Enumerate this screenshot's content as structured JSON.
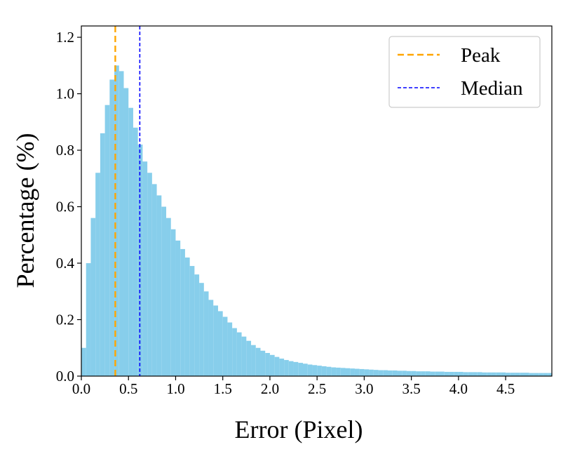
{
  "chart_data": {
    "type": "bar",
    "subtype": "histogram",
    "title": "",
    "xlabel": "Error (Pixel)",
    "ylabel": "Percentage (%)",
    "xlim": [
      0.0,
      4.99
    ],
    "ylim": [
      0.0,
      1.24
    ],
    "x_ticks": [
      0.0,
      0.5,
      1.0,
      1.5,
      2.0,
      2.5,
      3.0,
      3.5,
      4.0,
      4.5
    ],
    "x_tick_labels": [
      "0.0",
      "0.5",
      "1.0",
      "1.5",
      "2.0",
      "2.5",
      "3.0",
      "3.5",
      "4.0",
      "4.5"
    ],
    "y_ticks": [
      0.0,
      0.2,
      0.4,
      0.6,
      0.8,
      1.0,
      1.2
    ],
    "y_tick_labels": [
      "0.0",
      "0.2",
      "0.4",
      "0.6",
      "0.8",
      "1.0",
      "1.2"
    ],
    "bin_width": 0.05,
    "bins": [
      0.0,
      0.05,
      0.1,
      0.15,
      0.2,
      0.25,
      0.3,
      0.35,
      0.4,
      0.45,
      0.5,
      0.55,
      0.6,
      0.65,
      0.7,
      0.75,
      0.8,
      0.85,
      0.9,
      0.95,
      1.0,
      1.05,
      1.1,
      1.15,
      1.2,
      1.25,
      1.3,
      1.35,
      1.4,
      1.45,
      1.5,
      1.55,
      1.6,
      1.65,
      1.7,
      1.75,
      1.8,
      1.85,
      1.9,
      1.95,
      2.0,
      2.05,
      2.1,
      2.15,
      2.2,
      2.25,
      2.3,
      2.35,
      2.4,
      2.45,
      2.5,
      2.55,
      2.6,
      2.65,
      2.7,
      2.75,
      2.8,
      2.85,
      2.9,
      2.95,
      3.0,
      3.05,
      3.1,
      3.15,
      3.2,
      3.25,
      3.3,
      3.35,
      3.4,
      3.45,
      3.5,
      3.55,
      3.6,
      3.65,
      3.7,
      3.75,
      3.8,
      3.85,
      3.9,
      3.95,
      4.0,
      4.05,
      4.1,
      4.15,
      4.2,
      4.25,
      4.3,
      4.35,
      4.4,
      4.45,
      4.5,
      4.55,
      4.6,
      4.65,
      4.7,
      4.75,
      4.8,
      4.85,
      4.9,
      4.95
    ],
    "values": [
      0.1,
      0.4,
      0.56,
      0.72,
      0.86,
      0.96,
      1.05,
      1.1,
      1.08,
      1.02,
      0.95,
      0.88,
      0.82,
      0.76,
      0.72,
      0.68,
      0.64,
      0.6,
      0.56,
      0.52,
      0.48,
      0.45,
      0.42,
      0.39,
      0.36,
      0.33,
      0.3,
      0.27,
      0.25,
      0.23,
      0.21,
      0.19,
      0.17,
      0.155,
      0.14,
      0.125,
      0.11,
      0.1,
      0.09,
      0.082,
      0.075,
      0.068,
      0.062,
      0.057,
      0.053,
      0.05,
      0.047,
      0.044,
      0.041,
      0.039,
      0.037,
      0.035,
      0.033,
      0.031,
      0.03,
      0.029,
      0.028,
      0.027,
      0.026,
      0.025,
      0.024,
      0.023,
      0.022,
      0.021,
      0.021,
      0.02,
      0.02,
      0.019,
      0.019,
      0.018,
      0.018,
      0.017,
      0.017,
      0.017,
      0.016,
      0.016,
      0.016,
      0.015,
      0.015,
      0.015,
      0.015,
      0.014,
      0.014,
      0.014,
      0.014,
      0.013,
      0.013,
      0.013,
      0.013,
      0.013,
      0.012,
      0.012,
      0.012,
      0.012,
      0.012,
      0.011,
      0.011,
      0.011,
      0.011,
      0.011
    ],
    "bar_color": "#87ceeb",
    "vlines": [
      {
        "name": "Peak",
        "x": 0.36,
        "color": "#ffa500",
        "style": "dashed"
      },
      {
        "name": "Median",
        "x": 0.62,
        "color": "#0000ff",
        "style": "dashed"
      }
    ],
    "legend": {
      "placement": "top-right",
      "entries": [
        "Peak",
        "Median"
      ]
    },
    "grid": false
  }
}
